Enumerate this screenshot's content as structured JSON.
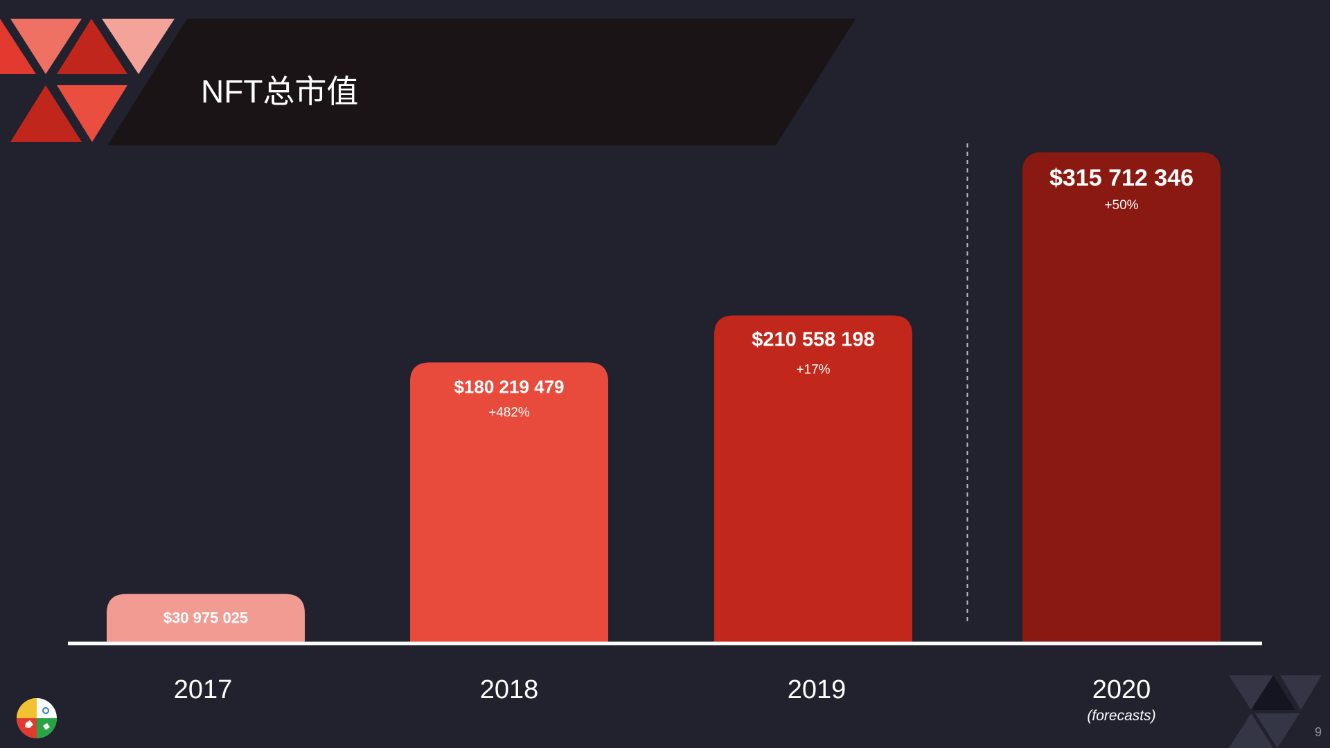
{
  "slide": {
    "title": "NFT总市值",
    "page_number": "9"
  },
  "chart_data": {
    "type": "bar",
    "categories": [
      "2017",
      "2018",
      "2019",
      "2020"
    ],
    "category_notes": [
      "",
      "",
      "",
      "(forecasts)"
    ],
    "values": [
      30975025,
      180219479,
      210558198,
      315712346
    ],
    "value_labels": [
      "$30 975 025",
      "$180 219 479",
      "$210 558 198",
      "$315 712 346"
    ],
    "change_labels": [
      "",
      "+482%",
      "+17%",
      "+50%"
    ],
    "bar_colors": [
      "#f29b92",
      "#e84b3c",
      "#c1271a",
      "#8a1912"
    ],
    "ylim": [
      0,
      330000000
    ],
    "grid": false,
    "forecast_separator_after": "2019"
  },
  "colors": {
    "background": "#21222e",
    "title_band": "#1a1416",
    "axis_line": "#ffffff",
    "text": "#ffffff",
    "separator": "#bdbdbd"
  },
  "icons": [
    "triangle-pattern",
    "company-logo"
  ]
}
